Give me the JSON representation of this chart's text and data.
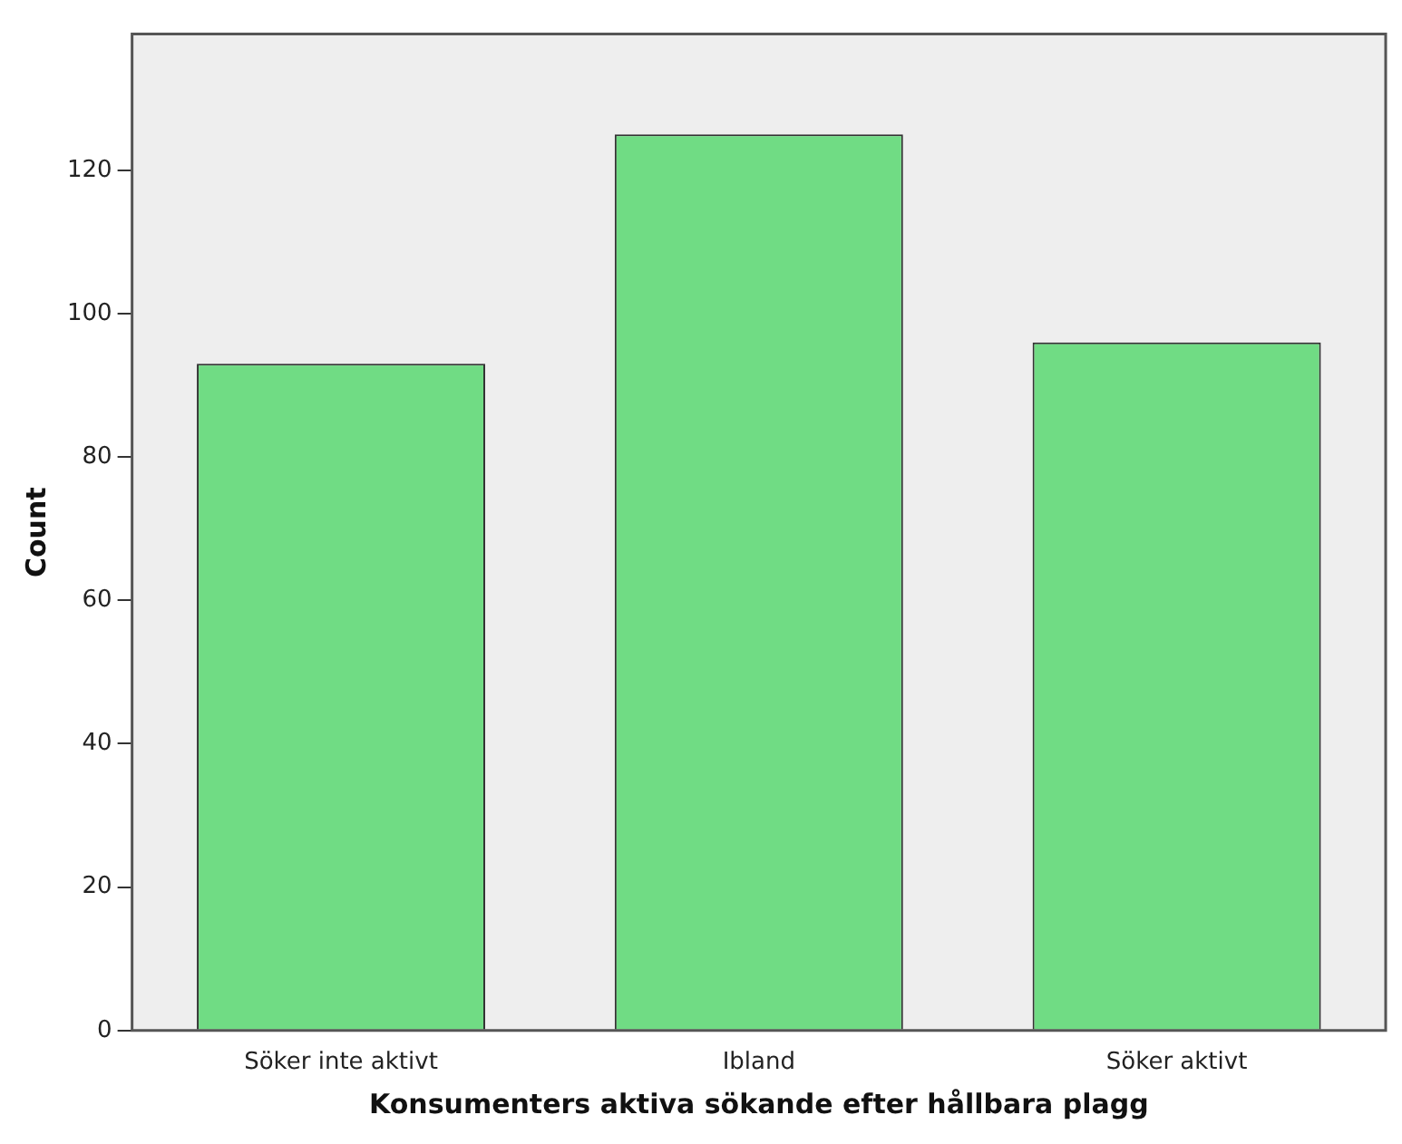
{
  "chart_data": {
    "type": "bar",
    "xlabel": "Konsumenters aktiva sökande efter hållbara plagg",
    "ylabel": "Count",
    "categories": [
      "Söker inte aktivt",
      "Ibland",
      "Söker aktivt"
    ],
    "values": [
      93,
      125,
      96
    ],
    "color": "#70dc84",
    "ylim": [
      0,
      139
    ],
    "yticks": [
      0,
      20,
      40,
      60,
      80,
      100,
      120
    ],
    "grid": false,
    "legend": false
  }
}
